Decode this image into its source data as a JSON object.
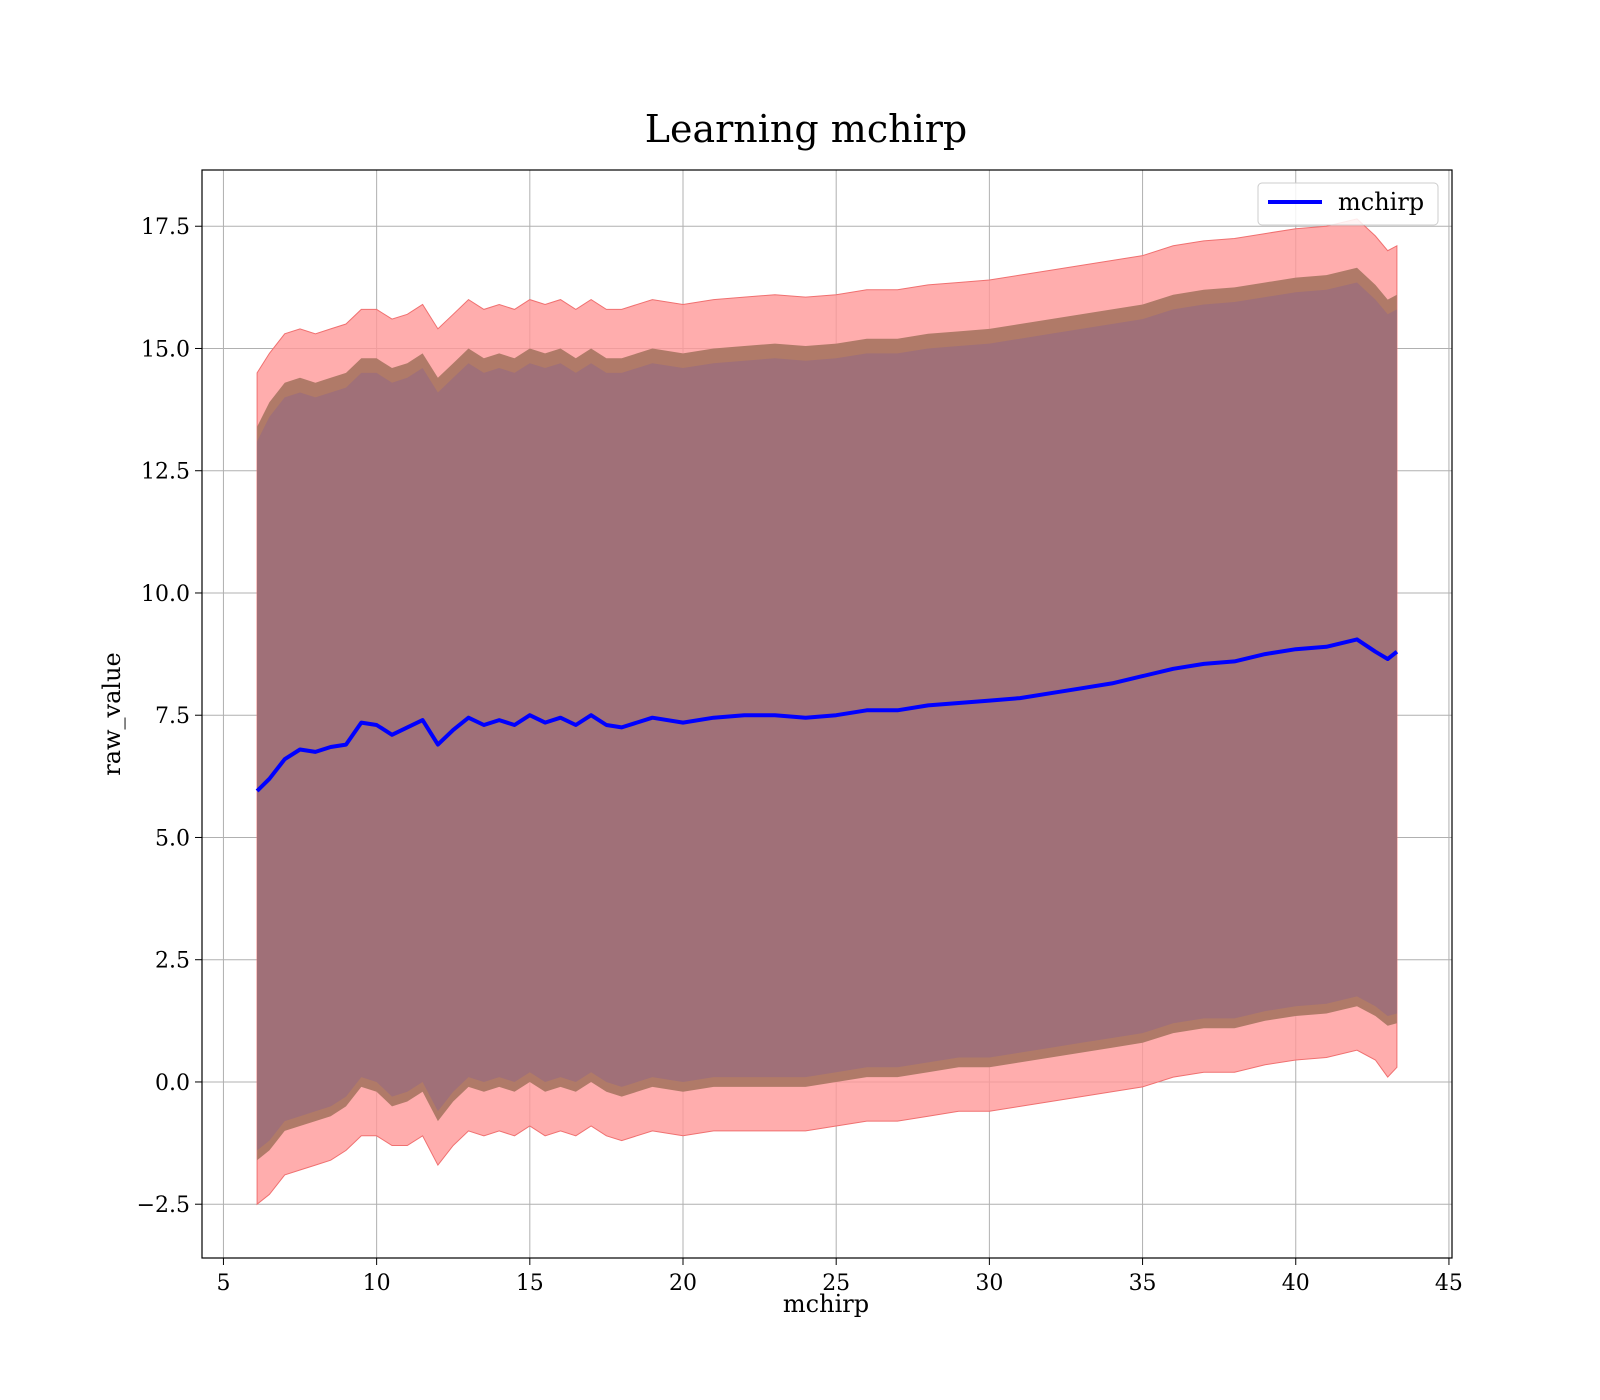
{
  "chart_data": {
    "type": "line",
    "title": "Learning mchirp",
    "xlabel": "mchirp",
    "ylabel": "raw_value",
    "xlim": [
      4.3,
      45.1
    ],
    "ylim": [
      -3.6,
      18.65
    ],
    "xticks": [
      5,
      10,
      15,
      20,
      25,
      30,
      35,
      40,
      45
    ],
    "xtick_labels": [
      "5",
      "10",
      "15",
      "20",
      "25",
      "30",
      "35",
      "40",
      "45"
    ],
    "yticks": [
      -2.5,
      0.0,
      2.5,
      5.0,
      7.5,
      10.0,
      12.5,
      15.0,
      17.5
    ],
    "ytick_labels": [
      "−2.5",
      "0.0",
      "2.5",
      "5.0",
      "7.5",
      "10.0",
      "12.5",
      "15.0",
      "17.5"
    ],
    "grid": true,
    "legend": {
      "position": "top-right",
      "entries": [
        "mchirp"
      ]
    },
    "colors": {
      "line": "#0000ff",
      "band_outer": "#ff9999",
      "band_middle": "#b07a68",
      "band_inner": "#a07078",
      "grid": "#b0b0b0"
    },
    "series": [
      {
        "name": "mchirp",
        "x": [
          6.1,
          6.5,
          7.0,
          7.5,
          8.0,
          8.5,
          9.0,
          9.5,
          10.0,
          10.5,
          11.0,
          11.5,
          12.0,
          12.5,
          13.0,
          13.5,
          14.0,
          14.5,
          15.0,
          15.5,
          16.0,
          16.5,
          17.0,
          17.5,
          18.0,
          19.0,
          20.0,
          21.0,
          22.0,
          23.0,
          24.0,
          25.0,
          26.0,
          27.0,
          28.0,
          29.0,
          30.0,
          31.0,
          32.0,
          33.0,
          34.0,
          35.0,
          36.0,
          37.0,
          38.0,
          39.0,
          40.0,
          41.0,
          42.0,
          42.6,
          43.0,
          43.3
        ],
        "y": [
          5.95,
          6.2,
          6.6,
          6.8,
          6.75,
          6.85,
          6.9,
          7.35,
          7.3,
          7.1,
          7.25,
          7.4,
          6.9,
          7.2,
          7.45,
          7.3,
          7.4,
          7.3,
          7.5,
          7.35,
          7.45,
          7.3,
          7.5,
          7.3,
          7.25,
          7.45,
          7.35,
          7.45,
          7.5,
          7.5,
          7.45,
          7.5,
          7.6,
          7.6,
          7.7,
          7.75,
          7.8,
          7.85,
          7.95,
          8.05,
          8.15,
          8.3,
          8.45,
          8.55,
          8.6,
          8.75,
          8.85,
          8.9,
          9.05,
          8.8,
          8.65,
          8.8
        ],
        "band_inner_lower": [
          -1.4,
          -1.2,
          -0.8,
          -0.7,
          -0.6,
          -0.5,
          -0.3,
          0.1,
          0.0,
          -0.3,
          -0.2,
          0.0,
          -0.6,
          -0.2,
          0.1,
          0.0,
          0.1,
          0.0,
          0.2,
          0.0,
          0.1,
          0.0,
          0.2,
          0.0,
          -0.1,
          0.1,
          0.0,
          0.1,
          0.1,
          0.1,
          0.1,
          0.2,
          0.3,
          0.3,
          0.4,
          0.5,
          0.5,
          0.6,
          0.7,
          0.8,
          0.9,
          1.0,
          1.2,
          1.3,
          1.3,
          1.45,
          1.55,
          1.6,
          1.75,
          1.55,
          1.35,
          1.4
        ],
        "band_inner_upper": [
          13.1,
          13.6,
          14.0,
          14.1,
          14.0,
          14.1,
          14.2,
          14.5,
          14.5,
          14.3,
          14.4,
          14.6,
          14.1,
          14.4,
          14.7,
          14.5,
          14.6,
          14.5,
          14.7,
          14.6,
          14.7,
          14.5,
          14.7,
          14.5,
          14.5,
          14.7,
          14.6,
          14.7,
          14.75,
          14.8,
          14.75,
          14.8,
          14.9,
          14.9,
          15.0,
          15.05,
          15.1,
          15.2,
          15.3,
          15.4,
          15.5,
          15.6,
          15.8,
          15.9,
          15.95,
          16.05,
          16.15,
          16.2,
          16.35,
          16.0,
          15.7,
          15.8
        ],
        "band_middle_lower": [
          -1.6,
          -1.4,
          -1.0,
          -0.9,
          -0.8,
          -0.7,
          -0.5,
          -0.1,
          -0.2,
          -0.5,
          -0.4,
          -0.2,
          -0.8,
          -0.4,
          -0.1,
          -0.2,
          -0.1,
          -0.2,
          0.0,
          -0.2,
          -0.1,
          -0.2,
          0.0,
          -0.2,
          -0.3,
          -0.1,
          -0.2,
          -0.1,
          -0.1,
          -0.1,
          -0.1,
          0.0,
          0.1,
          0.1,
          0.2,
          0.3,
          0.3,
          0.4,
          0.5,
          0.6,
          0.7,
          0.8,
          1.0,
          1.1,
          1.1,
          1.25,
          1.35,
          1.4,
          1.55,
          1.35,
          1.15,
          1.2
        ],
        "band_middle_upper": [
          13.4,
          13.9,
          14.3,
          14.4,
          14.3,
          14.4,
          14.5,
          14.8,
          14.8,
          14.6,
          14.7,
          14.9,
          14.4,
          14.7,
          15.0,
          14.8,
          14.9,
          14.8,
          15.0,
          14.9,
          15.0,
          14.8,
          15.0,
          14.8,
          14.8,
          15.0,
          14.9,
          15.0,
          15.05,
          15.1,
          15.05,
          15.1,
          15.2,
          15.2,
          15.3,
          15.35,
          15.4,
          15.5,
          15.6,
          15.7,
          15.8,
          15.9,
          16.1,
          16.2,
          16.25,
          16.35,
          16.45,
          16.5,
          16.65,
          16.3,
          16.0,
          16.1
        ],
        "band_outer_lower": [
          -2.5,
          -2.3,
          -1.9,
          -1.8,
          -1.7,
          -1.6,
          -1.4,
          -1.1,
          -1.1,
          -1.3,
          -1.3,
          -1.1,
          -1.7,
          -1.3,
          -1.0,
          -1.1,
          -1.0,
          -1.1,
          -0.9,
          -1.1,
          -1.0,
          -1.1,
          -0.9,
          -1.1,
          -1.2,
          -1.0,
          -1.1,
          -1.0,
          -1.0,
          -1.0,
          -1.0,
          -0.9,
          -0.8,
          -0.8,
          -0.7,
          -0.6,
          -0.6,
          -0.5,
          -0.4,
          -0.3,
          -0.2,
          -0.1,
          0.1,
          0.2,
          0.2,
          0.35,
          0.45,
          0.5,
          0.65,
          0.45,
          0.1,
          0.3
        ],
        "band_outer_upper": [
          14.5,
          14.9,
          15.3,
          15.4,
          15.3,
          15.4,
          15.5,
          15.8,
          15.8,
          15.6,
          15.7,
          15.9,
          15.4,
          15.7,
          16.0,
          15.8,
          15.9,
          15.8,
          16.0,
          15.9,
          16.0,
          15.8,
          16.0,
          15.8,
          15.8,
          16.0,
          15.9,
          16.0,
          16.05,
          16.1,
          16.05,
          16.1,
          16.2,
          16.2,
          16.3,
          16.35,
          16.4,
          16.5,
          16.6,
          16.7,
          16.8,
          16.9,
          17.1,
          17.2,
          17.25,
          17.35,
          17.45,
          17.5,
          17.65,
          17.3,
          17.0,
          17.1
        ]
      }
    ]
  }
}
